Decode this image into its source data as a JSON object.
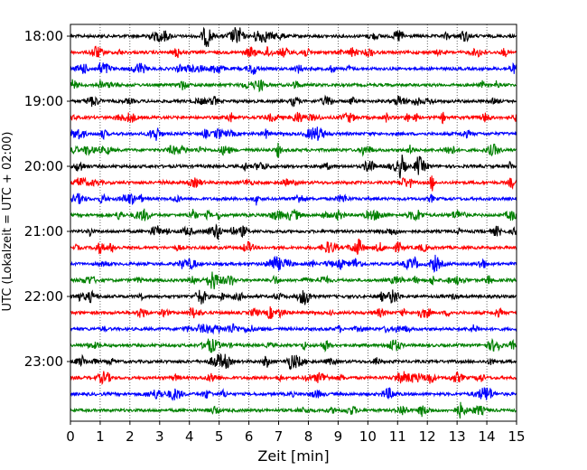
{
  "chart_data": {
    "type": "line",
    "title": "",
    "xlabel": "Zeit  [min]",
    "ylabel": "UTC (Lokalzeit = UTC + 02:00)",
    "xlim": [
      0,
      15
    ],
    "x_ticks": [
      0,
      1,
      2,
      3,
      4,
      5,
      6,
      7,
      8,
      9,
      10,
      11,
      12,
      13,
      14,
      15
    ],
    "y_tick_labels": [
      "18:00",
      "19:00",
      "20:00",
      "21:00",
      "22:00",
      "23:00"
    ],
    "grid": "vertical-dotted",
    "trace_interval_min": 15,
    "colors": [
      "#000000",
      "#ff0000",
      "#0000ff",
      "#008000"
    ],
    "series": [
      {
        "start": "18:00",
        "color": "#000000"
      },
      {
        "start": "18:15",
        "color": "#ff0000"
      },
      {
        "start": "18:30",
        "color": "#0000ff"
      },
      {
        "start": "18:45",
        "color": "#008000"
      },
      {
        "start": "19:00",
        "color": "#000000"
      },
      {
        "start": "19:15",
        "color": "#ff0000"
      },
      {
        "start": "19:30",
        "color": "#0000ff"
      },
      {
        "start": "19:45",
        "color": "#008000"
      },
      {
        "start": "20:00",
        "color": "#000000"
      },
      {
        "start": "20:15",
        "color": "#ff0000"
      },
      {
        "start": "20:30",
        "color": "#0000ff"
      },
      {
        "start": "20:45",
        "color": "#008000"
      },
      {
        "start": "21:00",
        "color": "#000000"
      },
      {
        "start": "21:15",
        "color": "#ff0000"
      },
      {
        "start": "21:30",
        "color": "#0000ff"
      },
      {
        "start": "21:45",
        "color": "#008000"
      },
      {
        "start": "22:00",
        "color": "#000000"
      },
      {
        "start": "22:15",
        "color": "#ff0000"
      },
      {
        "start": "22:30",
        "color": "#0000ff"
      },
      {
        "start": "22:45",
        "color": "#008000"
      },
      {
        "start": "23:00",
        "color": "#000000"
      },
      {
        "start": "23:15",
        "color": "#ff0000"
      },
      {
        "start": "23:30",
        "color": "#0000ff"
      },
      {
        "start": "23:45",
        "color": "#008000"
      }
    ]
  }
}
